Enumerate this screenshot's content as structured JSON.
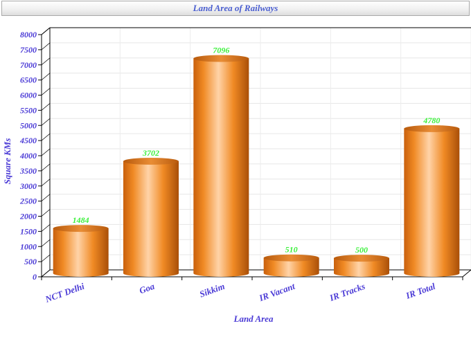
{
  "chart_data": {
    "type": "bar",
    "title": "Land Area of Railways",
    "xlabel": "Land Area",
    "ylabel": "Square KMs",
    "categories": [
      "NCT Delhi",
      "Goa",
      "Sikkim",
      "IR Vacant",
      "IR Tracks",
      "IR Total"
    ],
    "values": [
      1484,
      3702,
      7096,
      510,
      500,
      4780
    ],
    "data_labels": [
      "1484",
      "3702",
      "7096",
      "510",
      "500",
      "4780"
    ],
    "ylim": [
      0,
      8000
    ],
    "yticks": [
      0,
      500,
      1000,
      1500,
      2000,
      2500,
      3000,
      3500,
      4000,
      4500,
      5000,
      5500,
      6000,
      6500,
      7000,
      7500,
      8000
    ],
    "grid": true,
    "bar_shape": "cylinder",
    "colors": {
      "bar": "#f08a24",
      "bar_highlight": "#ffd3a8",
      "labels": "#4b3bd6",
      "data_labels": "#3cf03c",
      "title": "#4b5fd0"
    }
  }
}
